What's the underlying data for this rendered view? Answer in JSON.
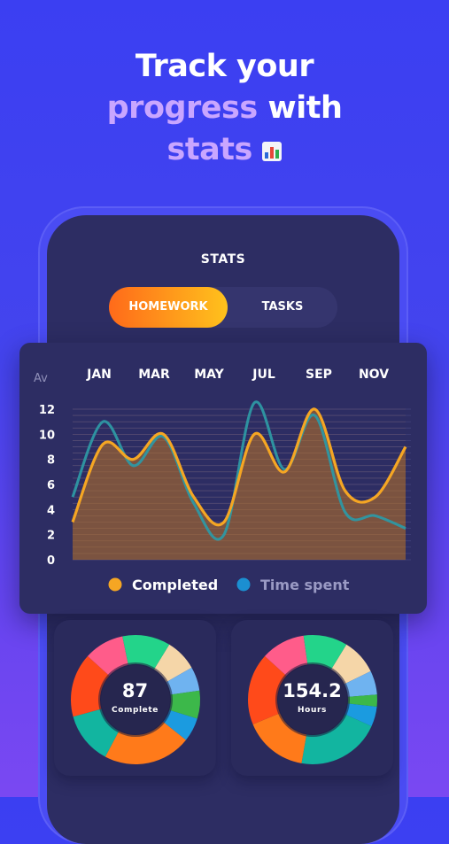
{
  "headline": {
    "line1": "Track your",
    "line2_accent": "progress",
    "line2_rest": " with",
    "line3_accent": "stats",
    "emoji_icon": "bar-chart-icon"
  },
  "screen": {
    "title": "STATS",
    "tabs": [
      {
        "label": "HOMEWORK",
        "active": true
      },
      {
        "label": "TASKS",
        "active": false
      }
    ]
  },
  "colors": {
    "completed": "#f5a623",
    "time_spent": "#1b8fd1",
    "fill": "#8a5a3a"
  },
  "chart_data": {
    "type": "line",
    "y_axis_label": "Av",
    "month_labels": [
      "JAN",
      "MAR",
      "MAY",
      "JUL",
      "SEP",
      "NOV"
    ],
    "y_ticks": [
      "12",
      "10",
      "8",
      "6",
      "4",
      "2",
      "0"
    ],
    "ylim": [
      0,
      12
    ],
    "series": [
      {
        "name": "Completed",
        "values": [
          3,
          9.2,
          8,
          10,
          5,
          3,
          10,
          7,
          12,
          5.5,
          5,
          9
        ]
      },
      {
        "name": "Time spent",
        "values": [
          5,
          11,
          7.5,
          9.8,
          4.5,
          2,
          12.5,
          7.2,
          11.5,
          3.8,
          3.5,
          2.5
        ]
      }
    ],
    "legend": [
      "Completed",
      "Time spent"
    ],
    "legend_position": "bottom"
  },
  "donuts": [
    {
      "value": "87",
      "label": "Complete",
      "segments": [
        {
          "color": "#f5d6a8",
          "fraction": 0.08
        },
        {
          "color": "#6fb3f0",
          "fraction": 0.06
        },
        {
          "color": "#3cb84a",
          "fraction": 0.07
        },
        {
          "color": "#1b9be0",
          "fraction": 0.06
        },
        {
          "color": "#ff7a1a",
          "fraction": 0.22
        },
        {
          "color": "#12b5a0",
          "fraction": 0.13
        },
        {
          "color": "#ff4a1a",
          "fraction": 0.16
        },
        {
          "color": "#ff5c8a",
          "fraction": 0.1
        },
        {
          "color": "#23d48a",
          "fraction": 0.12
        }
      ]
    },
    {
      "value": "154.2",
      "label": "Hours",
      "segments": [
        {
          "color": "#f5d6a8",
          "fraction": 0.09
        },
        {
          "color": "#6fb3f0",
          "fraction": 0.06
        },
        {
          "color": "#3cb84a",
          "fraction": 0.03
        },
        {
          "color": "#1b9be0",
          "fraction": 0.05
        },
        {
          "color": "#12b5a0",
          "fraction": 0.21
        },
        {
          "color": "#ff7a1a",
          "fraction": 0.16
        },
        {
          "color": "#ff4a1a",
          "fraction": 0.18
        },
        {
          "color": "#ff5c8a",
          "fraction": 0.11
        },
        {
          "color": "#23d48a",
          "fraction": 0.11
        }
      ]
    }
  ]
}
